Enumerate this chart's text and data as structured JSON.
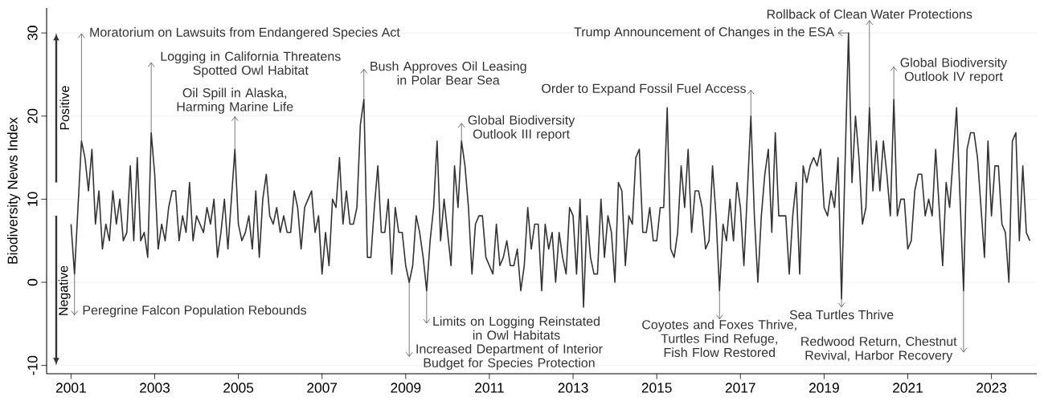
{
  "chart_data": {
    "type": "line",
    "ylabel": "Biodiversity News Index",
    "color": "#333333",
    "x": [
      "2001-01",
      "2001-02",
      "2001-03",
      "2001-04",
      "2001-05",
      "2001-06",
      "2001-07",
      "2001-08",
      "2001-09",
      "2001-10",
      "2001-11",
      "2001-12",
      "2002-01",
      "2002-02",
      "2002-03",
      "2002-04",
      "2002-05",
      "2002-06",
      "2002-07",
      "2002-08",
      "2002-09",
      "2002-10",
      "2002-11",
      "2002-12",
      "2003-01",
      "2003-02",
      "2003-03",
      "2003-04",
      "2003-05",
      "2003-06",
      "2003-07",
      "2003-08",
      "2003-09",
      "2003-10",
      "2003-11",
      "2003-12",
      "2004-01",
      "2004-02",
      "2004-03",
      "2004-04",
      "2004-05",
      "2004-06",
      "2004-07",
      "2004-08",
      "2004-09",
      "2004-10",
      "2004-11",
      "2004-12",
      "2005-01",
      "2005-02",
      "2005-03",
      "2005-04",
      "2005-05",
      "2005-06",
      "2005-07",
      "2005-08",
      "2005-09",
      "2005-10",
      "2005-11",
      "2005-12",
      "2006-01",
      "2006-02",
      "2006-03",
      "2006-04",
      "2006-05",
      "2006-06",
      "2006-07",
      "2006-08",
      "2006-09",
      "2006-10",
      "2006-11",
      "2006-12",
      "2007-01",
      "2007-02",
      "2007-03",
      "2007-04",
      "2007-05",
      "2007-06",
      "2007-07",
      "2007-08",
      "2007-09",
      "2007-10",
      "2007-11",
      "2007-12",
      "2008-01",
      "2008-02",
      "2008-03",
      "2008-04",
      "2008-05",
      "2008-06",
      "2008-07",
      "2008-08",
      "2008-09",
      "2008-10",
      "2008-11",
      "2008-12",
      "2009-01",
      "2009-02",
      "2009-03",
      "2009-04",
      "2009-05",
      "2009-06",
      "2009-07",
      "2009-08",
      "2009-09",
      "2009-10",
      "2009-11",
      "2009-12",
      "2010-01",
      "2010-02",
      "2010-03",
      "2010-04",
      "2010-05",
      "2010-06",
      "2010-07",
      "2010-08",
      "2010-09",
      "2010-10",
      "2010-11",
      "2010-12",
      "2011-01",
      "2011-02",
      "2011-03",
      "2011-04",
      "2011-05",
      "2011-06",
      "2011-07",
      "2011-08",
      "2011-09",
      "2011-10",
      "2011-11",
      "2011-12",
      "2012-01",
      "2012-02",
      "2012-03",
      "2012-04",
      "2012-05",
      "2012-06",
      "2012-07",
      "2012-08",
      "2012-09",
      "2012-10",
      "2012-11",
      "2012-12",
      "2013-01",
      "2013-02",
      "2013-03",
      "2013-04",
      "2013-05",
      "2013-06",
      "2013-07",
      "2013-08",
      "2013-09",
      "2013-10",
      "2013-11",
      "2013-12",
      "2014-01",
      "2014-02",
      "2014-03",
      "2014-04",
      "2014-05",
      "2014-06",
      "2014-07",
      "2014-08",
      "2014-09",
      "2014-10",
      "2014-11",
      "2014-12",
      "2015-01",
      "2015-02",
      "2015-03",
      "2015-04",
      "2015-05",
      "2015-06",
      "2015-07",
      "2015-08",
      "2015-09",
      "2015-10",
      "2015-11",
      "2015-12",
      "2016-01",
      "2016-02",
      "2016-03",
      "2016-04",
      "2016-05",
      "2016-06",
      "2016-07",
      "2016-08",
      "2016-09",
      "2016-10",
      "2016-11",
      "2016-12",
      "2017-01",
      "2017-02",
      "2017-03",
      "2017-04",
      "2017-05",
      "2017-06",
      "2017-07",
      "2017-08",
      "2017-09",
      "2017-10",
      "2017-11",
      "2017-12",
      "2018-01",
      "2018-02",
      "2018-03",
      "2018-04",
      "2018-05",
      "2018-06",
      "2018-07",
      "2018-08",
      "2018-09",
      "2018-10",
      "2018-11",
      "2018-12",
      "2019-01",
      "2019-02",
      "2019-03",
      "2019-04",
      "2019-05",
      "2019-06",
      "2019-07",
      "2019-08",
      "2019-09",
      "2019-10",
      "2019-11",
      "2019-12",
      "2020-01",
      "2020-02",
      "2020-03",
      "2020-04",
      "2020-05",
      "2020-06",
      "2020-07",
      "2020-08",
      "2020-09",
      "2020-10",
      "2020-11",
      "2020-12",
      "2021-01",
      "2021-02",
      "2021-03",
      "2021-04",
      "2021-05",
      "2021-06",
      "2021-07",
      "2021-08",
      "2021-09",
      "2021-10",
      "2021-11",
      "2021-12",
      "2022-01",
      "2022-02",
      "2022-03",
      "2022-04",
      "2022-05",
      "2022-06",
      "2022-07",
      "2022-08",
      "2022-09",
      "2022-10",
      "2022-11",
      "2022-12",
      "2023-01",
      "2023-02",
      "2023-03",
      "2023-04",
      "2023-05",
      "2023-06",
      "2023-07",
      "2023-08",
      "2023-09",
      "2023-10",
      "2023-11",
      "2023-12"
    ],
    "values": [
      7,
      1,
      9,
      17,
      15,
      11,
      16,
      7,
      11,
      4,
      7,
      5,
      11,
      7,
      10,
      5,
      6,
      14,
      5,
      15,
      5,
      6,
      3,
      18,
      13,
      4,
      7,
      5,
      9,
      11,
      11,
      5,
      8,
      6,
      12,
      5,
      8,
      7,
      6,
      9,
      7,
      10,
      3,
      6,
      10,
      4,
      10,
      16,
      7,
      5,
      6,
      8,
      4,
      11,
      3,
      10,
      13,
      8,
      7,
      9,
      6,
      8,
      6,
      6,
      11,
      9,
      4,
      9,
      10,
      11,
      6,
      8,
      1,
      6,
      2,
      10,
      9,
      15,
      7,
      11,
      7,
      7,
      9,
      19,
      22,
      3,
      3,
      9,
      14,
      6,
      6,
      10,
      1,
      9,
      6,
      6,
      2,
      0,
      2,
      8,
      6,
      3,
      -1,
      5,
      9,
      17,
      5,
      10,
      6,
      2,
      14,
      9,
      17,
      14,
      9,
      1,
      7,
      8,
      8,
      3,
      2,
      1,
      7,
      2,
      3,
      5,
      2,
      2,
      4,
      -1,
      2,
      9,
      4,
      7,
      7,
      -1,
      7,
      4,
      6,
      0,
      6,
      3,
      1,
      9,
      8,
      1,
      10,
      -3,
      8,
      3,
      1,
      1,
      10,
      3,
      8,
      6,
      0,
      12,
      11,
      2,
      8,
      7,
      15,
      16,
      6,
      6,
      9,
      5,
      5,
      9,
      9,
      21,
      4,
      3,
      6,
      14,
      9,
      16,
      6,
      11,
      11,
      9,
      4,
      5,
      14,
      8,
      -1,
      7,
      5,
      10,
      5,
      12,
      9,
      2,
      11,
      20,
      8,
      0,
      8,
      13,
      16,
      6,
      18,
      8,
      8,
      8,
      1,
      8,
      12,
      1,
      14,
      12,
      14,
      15,
      14,
      16,
      9,
      8,
      11,
      9,
      15,
      -2,
      14,
      30,
      12,
      20,
      15,
      7,
      9,
      21,
      11,
      17,
      11,
      17,
      13,
      8,
      22,
      8,
      10,
      10,
      4,
      5,
      11,
      13,
      13,
      8,
      10,
      8,
      16,
      9,
      2,
      12,
      9,
      15,
      21,
      10,
      -1,
      16,
      18,
      18,
      15,
      9,
      3,
      17,
      8,
      14,
      14,
      7,
      6,
      0,
      17,
      18,
      5,
      14,
      6,
      5
    ],
    "xlim": [
      "2000-06",
      "2024-02"
    ],
    "xticks": [
      "2001",
      "2003",
      "2005",
      "2007",
      "2009",
      "2011",
      "2013",
      "2015",
      "2017",
      "2019",
      "2021",
      "2023"
    ],
    "ylim": [
      -11,
      33
    ],
    "yticks": [
      -10,
      0,
      10,
      20,
      30
    ],
    "grid": "y",
    "annotations": [
      {
        "text": "Moratorium on Lawsuits from Endangered Species Act",
        "x": "2001-04",
        "y": 17
      },
      {
        "text": "Logging in California Threatens Spotted Owl Habitat",
        "x": "2002-12",
        "y": 18
      },
      {
        "text": "Oil Spill in Alaska, Harming Marine Life",
        "x": "2004-12",
        "y": 16
      },
      {
        "text": "Bush Approves Oil Leasing in Polar Bear Sea",
        "x": "2008-01",
        "y": 22
      },
      {
        "text": "Global Biodiversity Outlook III report",
        "x": "2010-05",
        "y": 17
      },
      {
        "text": "Order to Expand Fossil Fuel Access",
        "x": "2017-04",
        "y": 20
      },
      {
        "text": "Trump Announcement of Changes in the ESA",
        "x": "2019-08",
        "y": 30
      },
      {
        "text": "Rollback of Clean Water Protections",
        "x": "2020-02",
        "y": 21
      },
      {
        "text": "Global Biodiversity Outlook IV report",
        "x": "2020-09",
        "y": 22
      },
      {
        "text": "Peregrine Falcon Population Rebounds",
        "x": "2001-02",
        "y": 1
      },
      {
        "text": "Increased Department of Interior Budget for Species Protection",
        "x": "2009-02",
        "y": 0
      },
      {
        "text": "Limits on Logging Reinstated in Owl Habitats",
        "x": "2009-07",
        "y": -1
      },
      {
        "text": "Coyotes and Foxes Thrive, Turtles Find Refuge, Fish Flow Restored",
        "x": "2016-07",
        "y": -1
      },
      {
        "text": "Sea Turtles Thrive",
        "x": "2019-06",
        "y": -2
      },
      {
        "text": "Redwood Return, Chestnut Revival, Harbor Recovery",
        "x": "2022-05",
        "y": -1
      },
      "Positive",
      "Negative"
    ]
  }
}
